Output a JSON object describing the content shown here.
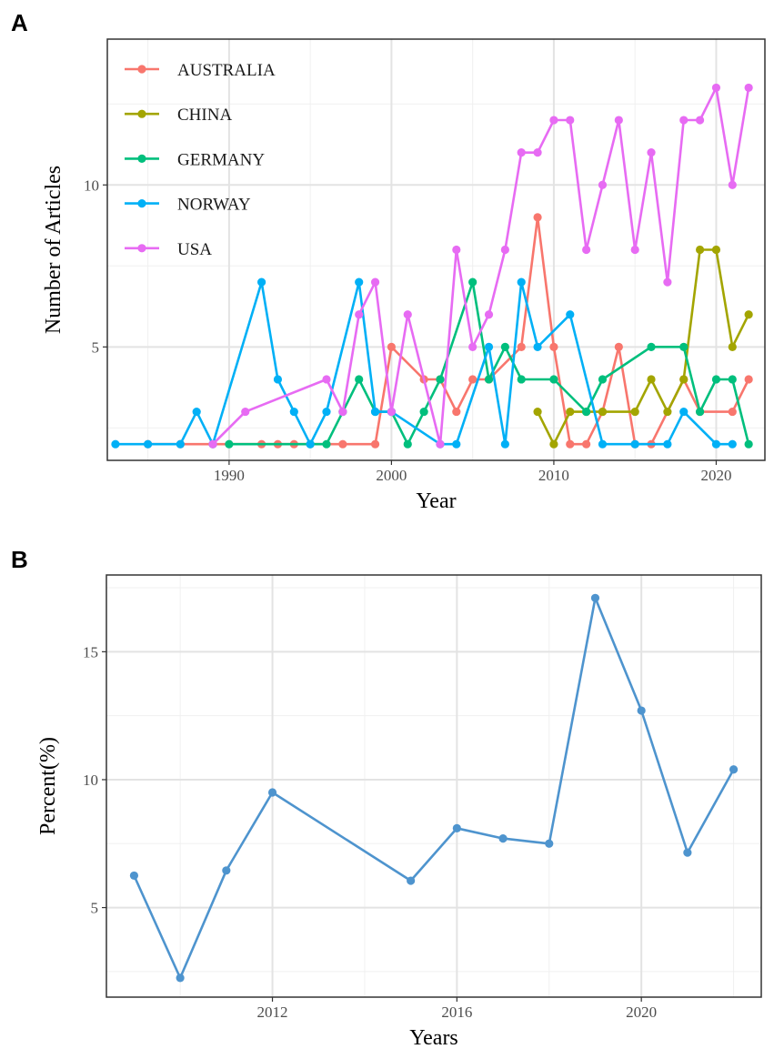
{
  "chart_data": [
    {
      "panel": "A",
      "type": "line",
      "xlabel": "Year",
      "ylabel": "Number of Articles",
      "xlim": [
        1982.5,
        2023.0
      ],
      "ylim": [
        1.5,
        14.5
      ],
      "xticks": [
        1990,
        2000,
        2010,
        2020
      ],
      "yticks": [
        5,
        10
      ],
      "legend_position": "top-left",
      "series": [
        {
          "name": "AUSTRALIA",
          "color": "#F8766D",
          "x": [
            1985,
            1987,
            1989,
            1992,
            1993,
            1994,
            1997,
            1999,
            2000,
            2002,
            2003,
            2004,
            2005,
            2006,
            2008,
            2009,
            2010,
            2011,
            2012,
            2013,
            2014,
            2015,
            2016,
            2018,
            2019,
            2021,
            2022
          ],
          "y": [
            2,
            2,
            2,
            2,
            2,
            2,
            2,
            2,
            5,
            4,
            4,
            3,
            4,
            4,
            5,
            9,
            5,
            2,
            2,
            3,
            5,
            2,
            2,
            4,
            3,
            3,
            4
          ]
        },
        {
          "name": "CHINA",
          "color": "#A3A500",
          "x": [
            2009,
            2010,
            2011,
            2012,
            2013,
            2015,
            2016,
            2017,
            2018,
            2019,
            2020,
            2021,
            2022
          ],
          "y": [
            3,
            2,
            3,
            3,
            3,
            3,
            4,
            3,
            4,
            8,
            8,
            5,
            6
          ]
        },
        {
          "name": "GERMANY",
          "color": "#00BF7D",
          "x": [
            1990,
            1995,
            1996,
            1997,
            1998,
            1999,
            2000,
            2001,
            2002,
            2003,
            2005,
            2006,
            2007,
            2008,
            2010,
            2012,
            2013,
            2016,
            2018,
            2019,
            2020,
            2021,
            2022
          ],
          "y": [
            2,
            2,
            2,
            3,
            4,
            3,
            3,
            2,
            3,
            4,
            7,
            4,
            5,
            4,
            4,
            3,
            4,
            5,
            5,
            3,
            4,
            4,
            2
          ]
        },
        {
          "name": "NORWAY",
          "color": "#00B0F6",
          "x": [
            1983,
            1985,
            1987,
            1988,
            1989,
            1992,
            1993,
            1994,
            1995,
            1996,
            1998,
            1999,
            2000,
            2003,
            2004,
            2006,
            2007,
            2008,
            2009,
            2011,
            2013,
            2015,
            2017,
            2018,
            2020,
            2021
          ],
          "y": [
            2,
            2,
            2,
            3,
            2,
            7,
            4,
            3,
            2,
            3,
            7,
            3,
            3,
            2,
            2,
            5,
            2,
            7,
            5,
            6,
            2,
            2,
            2,
            3,
            2,
            2
          ]
        },
        {
          "name": "USA",
          "color": "#E76BF3",
          "x": [
            1989,
            1991,
            1996,
            1997,
            1998,
            1999,
            2000,
            2001,
            2003,
            2004,
            2005,
            2006,
            2007,
            2008,
            2009,
            2010,
            2011,
            2012,
            2013,
            2014,
            2015,
            2016,
            2017,
            2018,
            2019,
            2020,
            2021,
            2022
          ],
          "y": [
            2,
            3,
            4,
            3,
            6,
            7,
            3,
            6,
            2,
            8,
            5,
            6,
            8,
            11,
            11,
            12,
            12,
            8,
            10,
            12,
            8,
            11,
            7,
            12,
            12,
            13,
            10,
            13
          ]
        }
      ]
    },
    {
      "panel": "B",
      "type": "line",
      "xlabel": "Years",
      "ylabel": "Percent(%)",
      "xlim": [
        2008.4,
        2022.6
      ],
      "ylim": [
        1.5,
        18.0
      ],
      "xticks": [
        2012,
        2016,
        2020
      ],
      "yticks": [
        5,
        10,
        15
      ],
      "series": [
        {
          "name": "Percent",
          "color": "#4E94CE",
          "x": [
            2009,
            2010,
            2011,
            2012,
            2015,
            2016,
            2017,
            2018,
            2019,
            2020,
            2021,
            2022
          ],
          "y": [
            6.25,
            2.25,
            6.45,
            9.5,
            6.05,
            8.1,
            7.7,
            7.5,
            17.1,
            12.7,
            7.15,
            10.4
          ]
        }
      ]
    }
  ]
}
